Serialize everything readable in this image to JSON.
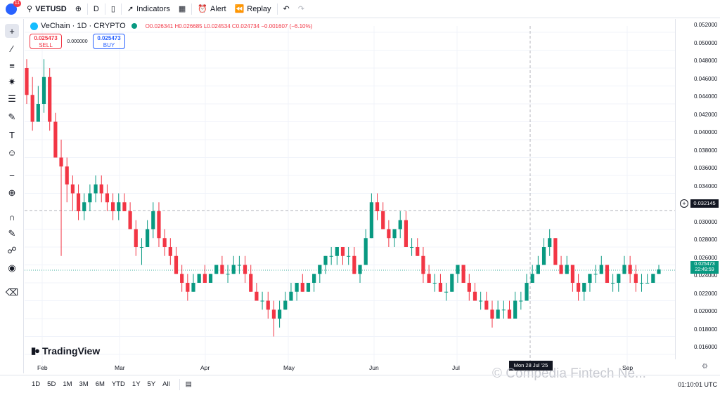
{
  "topbar": {
    "badge": "11",
    "symbol": "VETUSD",
    "interval": "D",
    "indicators": "Indicators",
    "alert": "Alert",
    "replay": "Replay"
  },
  "legend": {
    "title": "VeChain · 1D · CRYPTO",
    "o": "O0.026341",
    "h": "H0.026685",
    "l": "L0.024534",
    "c": "C0.024734",
    "chg": "−0.001607 (−6.10%)"
  },
  "trade": {
    "sell_price": "0.025473",
    "sell_label": "SELL",
    "spread": "0.000000",
    "buy_price": "0.025473",
    "buy_label": "BUY"
  },
  "yaxis": {
    "labels": [
      "0.052000",
      "0.050000",
      "0.048000",
      "0.046000",
      "0.044000",
      "0.042000",
      "0.040000",
      "0.038000",
      "0.036000",
      "0.034000",
      "0.030000",
      "0.028000",
      "0.026000",
      "0.024000",
      "0.022000",
      "0.020000",
      "0.018000",
      "0.016000"
    ]
  },
  "price_tag": {
    "price": "0.025473",
    "time": "22:49:59"
  },
  "crosshair_tag": "0.032145",
  "xaxis": {
    "labels": [
      "Feb",
      "Mar",
      "Apr",
      "May",
      "Jun",
      "Jul",
      "Sep"
    ]
  },
  "date_tag": "Mon 28 Jul '25",
  "brand": "TradingView",
  "watermark": "© Compedia Fintech Ne...",
  "bottombar": {
    "ranges": [
      "1D",
      "5D",
      "1M",
      "3M",
      "6M",
      "YTD",
      "1Y",
      "5Y",
      "All"
    ],
    "utc": "01:10:01 UTC"
  },
  "colors": {
    "up": "#089981",
    "down": "#f23645",
    "accent": "#2962ff"
  },
  "chart_data": {
    "type": "candlestick",
    "symbol": "VETUSD",
    "ylim": [
      0.016,
      0.053
    ],
    "x_ticks": [
      "Feb",
      "Mar",
      "Apr",
      "May",
      "Jun",
      "Jul",
      "Sep"
    ],
    "candles": [
      [
        0.048,
        0.049,
        0.044,
        0.045
      ],
      [
        0.045,
        0.047,
        0.041,
        0.042
      ],
      [
        0.042,
        0.046,
        0.042,
        0.044
      ],
      [
        0.044,
        0.049,
        0.043,
        0.047
      ],
      [
        0.047,
        0.048,
        0.041,
        0.042
      ],
      [
        0.042,
        0.043,
        0.038,
        0.038
      ],
      [
        0.038,
        0.04,
        0.027,
        0.037
      ],
      [
        0.037,
        0.038,
        0.033,
        0.035
      ],
      [
        0.035,
        0.036,
        0.032,
        0.034
      ],
      [
        0.034,
        0.035,
        0.031,
        0.032
      ],
      [
        0.032,
        0.034,
        0.031,
        0.033
      ],
      [
        0.033,
        0.035,
        0.032,
        0.034
      ],
      [
        0.034,
        0.036,
        0.033,
        0.035
      ],
      [
        0.035,
        0.036,
        0.033,
        0.034
      ],
      [
        0.034,
        0.035,
        0.032,
        0.033
      ],
      [
        0.033,
        0.034,
        0.031,
        0.032
      ],
      [
        0.032,
        0.034,
        0.031,
        0.033
      ],
      [
        0.033,
        0.034,
        0.032,
        0.032
      ],
      [
        0.032,
        0.033,
        0.03,
        0.03
      ],
      [
        0.03,
        0.031,
        0.027,
        0.028
      ],
      [
        0.028,
        0.029,
        0.026,
        0.028
      ],
      [
        0.028,
        0.031,
        0.028,
        0.03
      ],
      [
        0.03,
        0.033,
        0.029,
        0.032
      ],
      [
        0.032,
        0.033,
        0.028,
        0.029
      ],
      [
        0.029,
        0.03,
        0.027,
        0.028
      ],
      [
        0.028,
        0.029,
        0.026,
        0.027
      ],
      [
        0.027,
        0.028,
        0.025,
        0.025
      ],
      [
        0.025,
        0.026,
        0.023,
        0.024
      ],
      [
        0.024,
        0.025,
        0.022,
        0.023
      ],
      [
        0.023,
        0.025,
        0.023,
        0.024
      ],
      [
        0.024,
        0.025,
        0.024,
        0.025
      ],
      [
        0.025,
        0.026,
        0.024,
        0.024
      ],
      [
        0.024,
        0.025,
        0.024,
        0.025
      ],
      [
        0.025,
        0.026,
        0.025,
        0.026
      ],
      [
        0.026,
        0.027,
        0.025,
        0.025
      ],
      [
        0.025,
        0.026,
        0.024,
        0.025
      ],
      [
        0.025,
        0.027,
        0.025,
        0.026
      ],
      [
        0.026,
        0.027,
        0.025,
        0.026
      ],
      [
        0.026,
        0.027,
        0.024,
        0.025
      ],
      [
        0.025,
        0.026,
        0.023,
        0.023
      ],
      [
        0.023,
        0.024,
        0.022,
        0.022
      ],
      [
        0.022,
        0.023,
        0.021,
        0.022
      ],
      [
        0.022,
        0.023,
        0.02,
        0.021
      ],
      [
        0.021,
        0.022,
        0.018,
        0.02
      ],
      [
        0.02,
        0.022,
        0.019,
        0.021
      ],
      [
        0.021,
        0.023,
        0.021,
        0.022
      ],
      [
        0.022,
        0.024,
        0.022,
        0.023
      ],
      [
        0.023,
        0.024,
        0.022,
        0.024
      ],
      [
        0.024,
        0.025,
        0.023,
        0.023
      ],
      [
        0.023,
        0.024,
        0.023,
        0.024
      ],
      [
        0.024,
        0.025,
        0.023,
        0.025
      ],
      [
        0.025,
        0.026,
        0.024,
        0.026
      ],
      [
        0.026,
        0.027,
        0.025,
        0.027
      ],
      [
        0.027,
        0.028,
        0.026,
        0.027
      ],
      [
        0.027,
        0.028,
        0.026,
        0.028
      ],
      [
        0.028,
        0.028,
        0.026,
        0.027
      ],
      [
        0.027,
        0.028,
        0.026,
        0.027
      ],
      [
        0.027,
        0.028,
        0.025,
        0.025
      ],
      [
        0.025,
        0.026,
        0.024,
        0.026
      ],
      [
        0.026,
        0.03,
        0.026,
        0.029
      ],
      [
        0.029,
        0.034,
        0.029,
        0.033
      ],
      [
        0.033,
        0.034,
        0.031,
        0.032
      ],
      [
        0.032,
        0.033,
        0.03,
        0.03
      ],
      [
        0.03,
        0.031,
        0.028,
        0.029
      ],
      [
        0.029,
        0.03,
        0.028,
        0.03
      ],
      [
        0.03,
        0.032,
        0.029,
        0.031
      ],
      [
        0.031,
        0.032,
        0.028,
        0.028
      ],
      [
        0.028,
        0.029,
        0.027,
        0.028
      ],
      [
        0.028,
        0.029,
        0.027,
        0.027
      ],
      [
        0.027,
        0.028,
        0.024,
        0.025
      ],
      [
        0.025,
        0.026,
        0.024,
        0.024
      ],
      [
        0.024,
        0.025,
        0.023,
        0.024
      ],
      [
        0.024,
        0.025,
        0.023,
        0.023
      ],
      [
        0.023,
        0.024,
        0.022,
        0.023
      ],
      [
        0.023,
        0.025,
        0.023,
        0.025
      ],
      [
        0.025,
        0.026,
        0.024,
        0.026
      ],
      [
        0.026,
        0.026,
        0.024,
        0.024
      ],
      [
        0.024,
        0.025,
        0.022,
        0.023
      ],
      [
        0.023,
        0.024,
        0.022,
        0.022
      ],
      [
        0.022,
        0.023,
        0.021,
        0.022
      ],
      [
        0.022,
        0.023,
        0.021,
        0.021
      ],
      [
        0.021,
        0.022,
        0.019,
        0.02
      ],
      [
        0.02,
        0.022,
        0.02,
        0.021
      ],
      [
        0.021,
        0.022,
        0.02,
        0.021
      ],
      [
        0.021,
        0.022,
        0.02,
        0.02
      ],
      [
        0.02,
        0.023,
        0.02,
        0.022
      ],
      [
        0.022,
        0.023,
        0.021,
        0.022
      ],
      [
        0.022,
        0.025,
        0.022,
        0.024
      ],
      [
        0.024,
        0.026,
        0.024,
        0.025
      ],
      [
        0.025,
        0.027,
        0.025,
        0.026
      ],
      [
        0.026,
        0.029,
        0.026,
        0.028
      ],
      [
        0.028,
        0.03,
        0.027,
        0.029
      ],
      [
        0.029,
        0.029,
        0.026,
        0.026
      ],
      [
        0.026,
        0.027,
        0.025,
        0.025
      ],
      [
        0.025,
        0.027,
        0.025,
        0.026
      ],
      [
        0.026,
        0.026,
        0.023,
        0.024
      ],
      [
        0.024,
        0.025,
        0.022,
        0.023
      ],
      [
        0.023,
        0.024,
        0.022,
        0.024
      ],
      [
        0.024,
        0.025,
        0.023,
        0.025
      ],
      [
        0.025,
        0.026,
        0.024,
        0.025
      ],
      [
        0.025,
        0.027,
        0.025,
        0.026
      ],
      [
        0.026,
        0.026,
        0.024,
        0.024
      ],
      [
        0.024,
        0.025,
        0.023,
        0.024
      ],
      [
        0.024,
        0.025,
        0.023,
        0.025
      ],
      [
        0.025,
        0.027,
        0.025,
        0.026
      ],
      [
        0.026,
        0.027,
        0.024,
        0.025
      ],
      [
        0.025,
        0.026,
        0.023,
        0.024
      ],
      [
        0.024,
        0.025,
        0.023,
        0.024
      ],
      [
        0.024,
        0.025,
        0.024,
        0.024
      ],
      [
        0.024,
        0.025,
        0.024,
        0.025
      ],
      [
        0.025,
        0.026,
        0.025,
        0.0255
      ]
    ]
  }
}
